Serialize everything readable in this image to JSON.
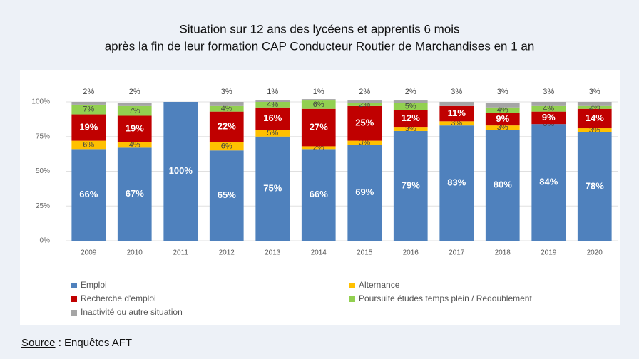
{
  "chart_data": {
    "type": "stacked_bar",
    "title": "Situation sur 12 ans des lycéens et apprentis 6 mois",
    "subtitle": "après la fin de leur formation CAP Conducteur Routier de Marchandises en 1 an",
    "categories": [
      "2009",
      "2010",
      "2011",
      "2012",
      "2013",
      "2014",
      "2015",
      "2016",
      "2017",
      "2018",
      "2019",
      "2020"
    ],
    "series": [
      {
        "name": "Emploi",
        "color": "#4f81bd",
        "values": [
          66,
          67,
          100,
          65,
          75,
          66,
          69,
          79,
          83,
          80,
          84,
          78
        ],
        "value_labels": [
          "66%",
          "67%",
          "100%",
          "65%",
          "75%",
          "66%",
          "69%",
          "79%",
          "83%",
          "80%",
          "84%",
          "78%"
        ]
      },
      {
        "name": "Alternance",
        "color": "#ffc000",
        "values": [
          6,
          4,
          null,
          6,
          5,
          2,
          3,
          3,
          3,
          3,
          0,
          3
        ],
        "value_labels": [
          "6%",
          "4%",
          null,
          "6%",
          "5%",
          "2%",
          "3%",
          "3%",
          "3%",
          "3%",
          "0%",
          "3%"
        ]
      },
      {
        "name": "Recherche d'emploi",
        "color": "#c00000",
        "values": [
          19,
          19,
          null,
          22,
          16,
          27,
          25,
          12,
          11,
          9,
          9,
          14
        ],
        "value_labels": [
          "19%",
          "19%",
          null,
          "22%",
          "16%",
          "27%",
          "25%",
          "12%",
          "11%",
          "9%",
          "9%",
          "14%"
        ]
      },
      {
        "name": "Poursuite études temps plein / Redoublement",
        "color": "#92d050",
        "values": [
          7,
          7,
          null,
          4,
          4,
          6,
          2,
          5,
          null,
          4,
          4,
          2
        ],
        "value_labels": [
          "7%",
          "7%",
          null,
          "4%",
          "4%",
          "6%",
          "2%",
          "5%",
          null,
          "4%",
          "4%",
          "2%"
        ]
      },
      {
        "name": "Inactivité ou autre situation",
        "color": "#a5a5a5",
        "values": [
          2,
          2,
          null,
          3,
          1,
          1,
          2,
          2,
          3,
          3,
          3,
          3
        ],
        "value_labels": [
          "2%",
          "2%",
          null,
          "3%",
          "1%",
          "1%",
          "2%",
          "2%",
          "3%",
          "3%",
          "3%",
          "3%"
        ]
      }
    ],
    "ylim": [
      0,
      100
    ],
    "yticks": [
      {
        "value": 0,
        "label": "0%"
      },
      {
        "value": 25,
        "label": "25%"
      },
      {
        "value": 50,
        "label": "50%"
      },
      {
        "value": 75,
        "label": "75%"
      },
      {
        "value": 100,
        "label": "100%"
      }
    ],
    "grid": true,
    "source_label": "Source",
    "source_text": " : Enquêtes AFT"
  }
}
